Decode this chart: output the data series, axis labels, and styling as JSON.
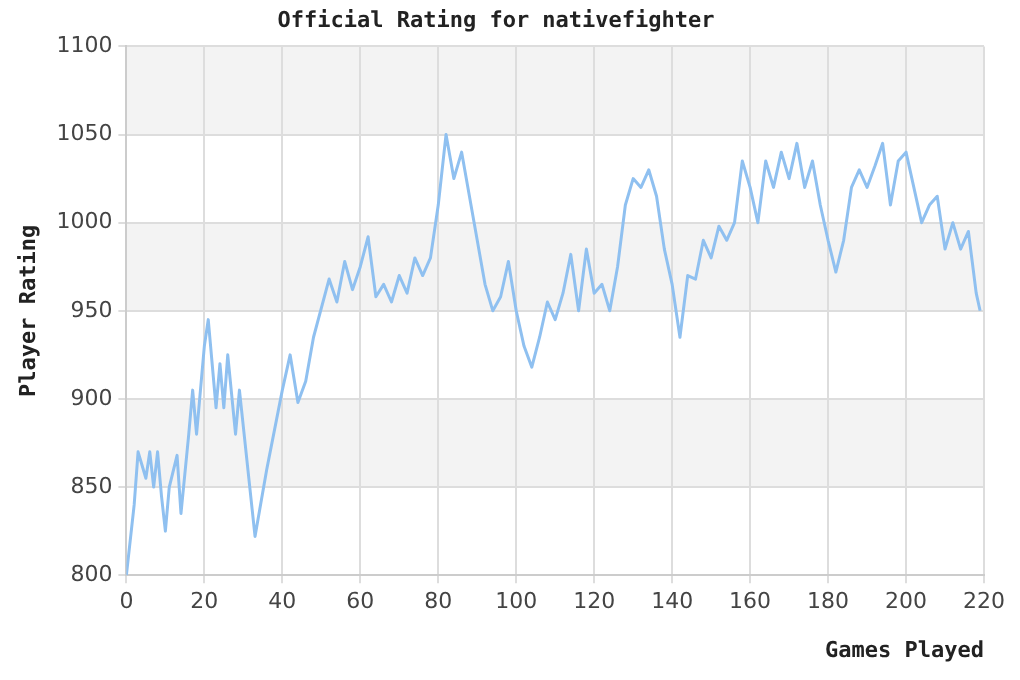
{
  "chart_data": {
    "type": "line",
    "title": "Official Rating for nativefighter",
    "xlabel": "Games Played",
    "ylabel": "Player Rating",
    "x": [
      0,
      2,
      3,
      5,
      6,
      7,
      8,
      9,
      10,
      11,
      13,
      14,
      16,
      17,
      18,
      20,
      21,
      23,
      24,
      25,
      26,
      28,
      29,
      33,
      36,
      40,
      42,
      44,
      46,
      48,
      52,
      54,
      56,
      58,
      60,
      62,
      64,
      66,
      68,
      70,
      72,
      74,
      76,
      78,
      80,
      82,
      84,
      86,
      88,
      90,
      92,
      94,
      96,
      98,
      100,
      102,
      104,
      106,
      108,
      110,
      112,
      114,
      116,
      118,
      120,
      122,
      124,
      126,
      128,
      130,
      132,
      134,
      136,
      138,
      140,
      142,
      144,
      146,
      148,
      150,
      152,
      154,
      156,
      158,
      160,
      162,
      164,
      166,
      168,
      170,
      172,
      174,
      176,
      178,
      180,
      182,
      184,
      186,
      188,
      190,
      192,
      194,
      196,
      198,
      200,
      202,
      204,
      206,
      208,
      210,
      212,
      214,
      216,
      218,
      219
    ],
    "series": [
      {
        "color": "#8fc0f0",
        "values": [
          800,
          840,
          870,
          855,
          870,
          850,
          870,
          845,
          825,
          850,
          868,
          835,
          880,
          905,
          880,
          930,
          945,
          895,
          920,
          895,
          925,
          880,
          905,
          822,
          860,
          905,
          925,
          898,
          910,
          935,
          968,
          955,
          978,
          962,
          975,
          992,
          958,
          965,
          955,
          970,
          960,
          980,
          970,
          980,
          1010,
          1050,
          1025,
          1040,
          1015,
          990,
          965,
          950,
          958,
          978,
          950,
          930,
          918,
          935,
          955,
          945,
          960,
          982,
          950,
          985,
          960,
          965,
          950,
          975,
          1010,
          1025,
          1020,
          1030,
          1015,
          985,
          965,
          935,
          970,
          968,
          990,
          980,
          998,
          990,
          1000,
          1035,
          1020,
          1000,
          1035,
          1020,
          1040,
          1025,
          1045,
          1020,
          1035,
          1010,
          990,
          972,
          990,
          1020,
          1030,
          1020,
          1032,
          1045,
          1010,
          1035,
          1040,
          1020,
          1000,
          1010,
          1015,
          985,
          1000,
          985,
          995,
          960,
          950
        ]
      }
    ],
    "xlim": [
      0,
      220
    ],
    "xticks": [
      0,
      20,
      40,
      60,
      80,
      100,
      120,
      140,
      160,
      180,
      200,
      220
    ],
    "ylim": [
      800,
      1100
    ],
    "yticks": [
      800,
      850,
      900,
      950,
      1000,
      1050,
      1100
    ],
    "grid": true,
    "marker": "none",
    "line_style": "solid"
  }
}
